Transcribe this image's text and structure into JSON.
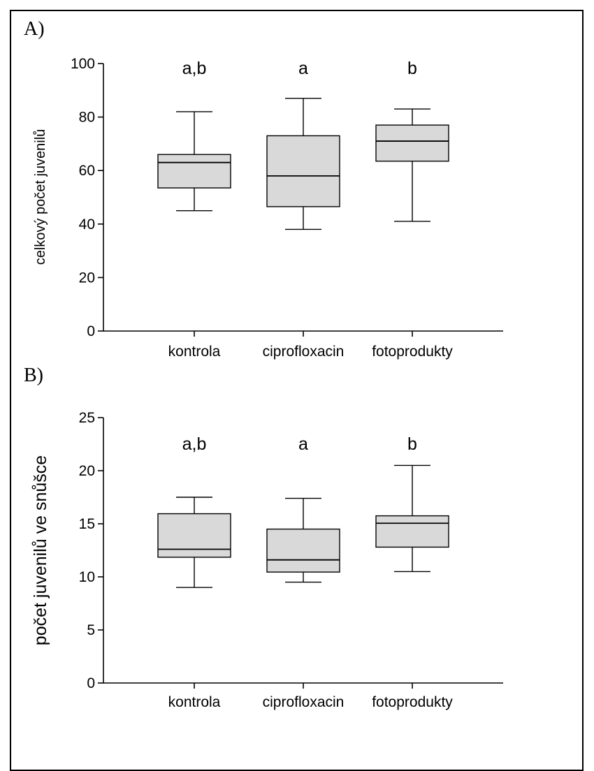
{
  "panels": [
    {
      "label": "A)",
      "chart_data": {
        "type": "box",
        "ylabel": "celkový počet juvenilů",
        "ylim": [
          0,
          100
        ],
        "yticks": [
          0,
          20,
          40,
          60,
          80,
          100
        ],
        "categories": [
          "kontrola",
          "ciprofloxacin",
          "fotoprodukty"
        ],
        "significance": [
          "a,b",
          "a",
          "b"
        ],
        "boxes": [
          {
            "min": 45,
            "q1": 53.5,
            "median": 63,
            "q3": 66,
            "max": 82
          },
          {
            "min": 38,
            "q1": 46.5,
            "median": 58,
            "q3": 73,
            "max": 87
          },
          {
            "min": 41,
            "q1": 63.5,
            "median": 71,
            "q3": 77,
            "max": 83
          }
        ],
        "box_color": "#d9d9d9"
      }
    },
    {
      "label": "B)",
      "chart_data": {
        "type": "box",
        "ylabel": "počet juvenilů ve snůšce",
        "ylim": [
          0,
          25
        ],
        "yticks": [
          0,
          5,
          10,
          15,
          20,
          25
        ],
        "categories": [
          "kontrola",
          "ciprofloxacin",
          "fotoprodukty"
        ],
        "significance": [
          "a,b",
          "a",
          "b"
        ],
        "boxes": [
          {
            "min": 9,
            "q1": 11.85,
            "median": 12.6,
            "q3": 15.95,
            "max": 17.5
          },
          {
            "min": 9.5,
            "q1": 10.45,
            "median": 11.6,
            "q3": 14.5,
            "max": 17.4
          },
          {
            "min": 10.5,
            "q1": 12.8,
            "median": 15.05,
            "q3": 15.75,
            "max": 20.5
          }
        ],
        "box_color": "#d9d9d9"
      }
    }
  ]
}
